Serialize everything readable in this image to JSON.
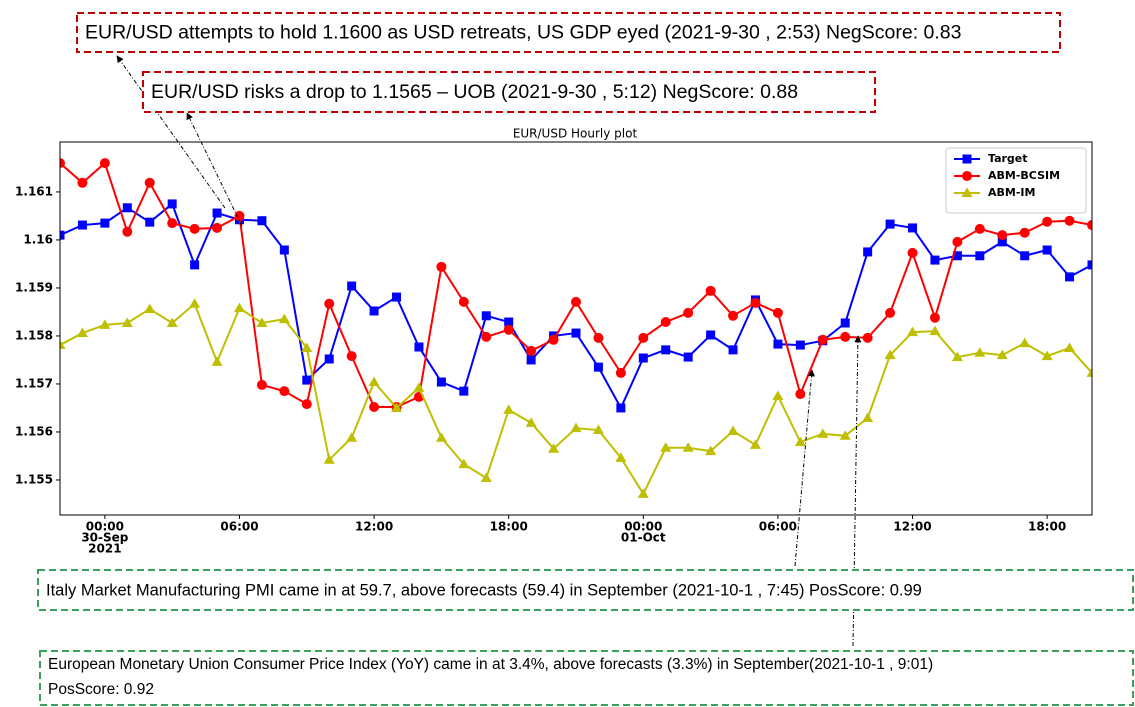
{
  "chart_data": {
    "type": "line",
    "title": "EUR/USD Hourly plot",
    "x": [
      "2021-09-29T22:00",
      "2021-09-29T23:00",
      "2021-09-30T00:00",
      "2021-09-30T01:00",
      "2021-09-30T02:00",
      "2021-09-30T03:00",
      "2021-09-30T04:00",
      "2021-09-30T05:00",
      "2021-09-30T06:00",
      "2021-09-30T07:00",
      "2021-09-30T08:00",
      "2021-09-30T09:00",
      "2021-09-30T10:00",
      "2021-09-30T11:00",
      "2021-09-30T12:00",
      "2021-09-30T13:00",
      "2021-09-30T14:00",
      "2021-09-30T15:00",
      "2021-09-30T16:00",
      "2021-09-30T17:00",
      "2021-09-30T18:00",
      "2021-09-30T19:00",
      "2021-09-30T20:00",
      "2021-09-30T21:00",
      "2021-09-30T22:00",
      "2021-09-30T23:00",
      "2021-10-01T00:00",
      "2021-10-01T01:00",
      "2021-10-01T02:00",
      "2021-10-01T03:00",
      "2021-10-01T04:00",
      "2021-10-01T05:00",
      "2021-10-01T06:00",
      "2021-10-01T07:00",
      "2021-10-01T08:00",
      "2021-10-01T09:00",
      "2021-10-01T10:00",
      "2021-10-01T11:00",
      "2021-10-01T12:00",
      "2021-10-01T13:00",
      "2021-10-01T14:00",
      "2021-10-01T15:00",
      "2021-10-01T16:00",
      "2021-10-01T17:00",
      "2021-10-01T18:00",
      "2021-10-01T19:00",
      "2021-10-01T20:00"
    ],
    "series": [
      {
        "name": "Target",
        "color": "#0000ff",
        "marker": "square",
        "values": [
          1.1601,
          1.16031,
          1.16035,
          1.16067,
          1.16037,
          1.16075,
          1.15948,
          1.16056,
          1.16042,
          1.1604,
          1.15979,
          1.15708,
          1.15752,
          1.15904,
          1.15852,
          1.15881,
          1.15777,
          1.15704,
          1.15685,
          1.15842,
          1.15829,
          1.1575,
          1.158,
          1.15806,
          1.15735,
          1.1565,
          1.15754,
          1.15771,
          1.15756,
          1.15802,
          1.15771,
          1.15875,
          1.15783,
          1.15781,
          1.1579,
          1.15827,
          1.15975,
          1.16033,
          1.16025,
          1.15958,
          1.15967,
          1.15967,
          1.15996,
          1.15967,
          1.15979,
          1.15923,
          1.15948
        ]
      },
      {
        "name": "ABM-BCSIM",
        "color": "#ff0000",
        "marker": "circle",
        "values": [
          1.1616,
          1.16119,
          1.1616,
          1.16017,
          1.16119,
          1.16035,
          1.16023,
          1.16025,
          1.1605,
          1.15698,
          1.15685,
          1.15658,
          1.15867,
          1.15758,
          1.15652,
          1.15652,
          1.15673,
          1.15944,
          1.15871,
          1.15798,
          1.15813,
          1.15769,
          1.15792,
          1.15871,
          1.15796,
          1.15723,
          1.15796,
          1.15829,
          1.15848,
          1.15894,
          1.15842,
          1.15869,
          1.15848,
          1.15679,
          1.15792,
          1.15798,
          1.15796,
          1.15848,
          1.15973,
          1.15838,
          1.15996,
          1.16023,
          1.1601,
          1.16015,
          1.16038,
          1.1604,
          1.16031
        ]
      },
      {
        "name": "ABM-IM",
        "color": "#bfbf00",
        "marker": "triangle",
        "values": [
          1.15781,
          1.15806,
          1.15823,
          1.15827,
          1.15856,
          1.15827,
          1.15867,
          1.15746,
          1.15858,
          1.15827,
          1.15835,
          1.15775,
          1.15542,
          1.15588,
          1.15704,
          1.1565,
          1.15692,
          1.15588,
          1.15533,
          1.15504,
          1.15646,
          1.15619,
          1.15565,
          1.15608,
          1.15604,
          1.15546,
          1.15471,
          1.15567,
          1.15567,
          1.1556,
          1.15602,
          1.15573,
          1.15675,
          1.15579,
          1.15596,
          1.15592,
          1.15629,
          1.1576,
          1.15808,
          1.1581,
          1.15756,
          1.15765,
          1.1576,
          1.15785,
          1.15758,
          1.15775,
          1.15723
        ]
      }
    ],
    "xlim": [
      "2021-09-29T22:00",
      "2021-10-01T20:00"
    ],
    "xticks": [
      {
        "value": "2021-09-30T00:00",
        "label": [
          "00:00",
          "30-Sep",
          "2021"
        ]
      },
      {
        "value": "2021-09-30T06:00",
        "label": [
          "06:00"
        ]
      },
      {
        "value": "2021-09-30T12:00",
        "label": [
          "12:00"
        ]
      },
      {
        "value": "2021-09-30T18:00",
        "label": [
          "18:00"
        ]
      },
      {
        "value": "2021-10-01T00:00",
        "label": [
          "00:00",
          "01-Oct"
        ]
      },
      {
        "value": "2021-10-01T06:00",
        "label": [
          "06:00"
        ]
      },
      {
        "value": "2021-10-01T12:00",
        "label": [
          "12:00"
        ]
      },
      {
        "value": "2021-10-01T18:00",
        "label": [
          "18:00"
        ]
      }
    ],
    "ylim": [
      1.15427,
      1.16204
    ],
    "yticks": [
      1.155,
      1.156,
      1.157,
      1.158,
      1.159,
      1.16,
      1.161
    ],
    "grid": false,
    "legend": "upper right",
    "annotations": [
      {
        "lines": [
          "EUR/USD attempts to hold 1.1600 as USD retreats, US GDP eyed (2021-9-30 , 2:53) NegScore: 0.83"
        ],
        "color": "#c00000"
      },
      {
        "lines": [
          "EUR/USD risks a drop to 1.1565 – UOB (2021-9-30 , 5:12) NegScore: 0.88"
        ],
        "color": "#c00000"
      },
      {
        "lines": [
          "Italy Market Manufacturing PMI came in at 59.7, above forecasts (59.4) in September (2021-10-1 , 7:45) PosScore: 0.99"
        ],
        "color": "#3aa05a"
      },
      {
        "lines": [
          "European Monetary Union Consumer Price Index (YoY) came in at 3.4%, above forecasts (3.3%) in September(2021-10-1 , 9:01)",
          "PosScore: 0.92"
        ],
        "color": "#3aa05a"
      }
    ]
  }
}
